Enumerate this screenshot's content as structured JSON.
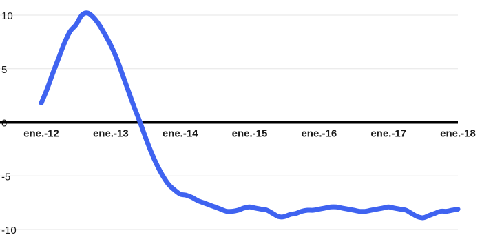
{
  "chart_data": {
    "type": "line",
    "title": "",
    "xlabel": "",
    "ylabel": "",
    "ylim": [
      -10,
      10
    ],
    "xlim": [
      "2012-01",
      "2018-01"
    ],
    "y_ticks": [
      10,
      5,
      0,
      -5,
      -10
    ],
    "y_tick_labels": [
      "10",
      "5",
      "0",
      "-5",
      "-10"
    ],
    "x_ticks": [
      "2012-01",
      "2013-01",
      "2014-01",
      "2015-01",
      "2016-01",
      "2017-01",
      "2018-01"
    ],
    "x_tick_labels": [
      "ene.-12",
      "ene.-13",
      "ene.-14",
      "ene.-15",
      "ene.-16",
      "ene.-17",
      "ene.-18"
    ],
    "grid": true,
    "zero_line": true,
    "colors": {
      "series": "#3f63f0",
      "zero_line": "#000000",
      "grid": "#e6e6e6"
    },
    "series": [
      {
        "x": [
          "2012-01",
          "2012-02",
          "2012-03",
          "2012-04",
          "2012-05",
          "2012-06",
          "2012-07",
          "2012-08",
          "2012-09",
          "2012-10",
          "2012-11",
          "2012-12",
          "2013-01",
          "2013-02",
          "2013-03",
          "2013-04",
          "2013-05",
          "2013-06",
          "2013-07",
          "2013-08",
          "2013-09",
          "2013-10",
          "2013-11",
          "2013-12",
          "2014-01",
          "2014-02",
          "2014-03",
          "2014-04",
          "2014-05",
          "2014-06",
          "2014-07",
          "2014-08",
          "2014-09",
          "2014-10",
          "2014-11",
          "2014-12",
          "2015-01",
          "2015-02",
          "2015-03",
          "2015-04",
          "2015-05",
          "2015-06",
          "2015-07",
          "2015-08",
          "2015-09",
          "2015-10",
          "2015-11",
          "2015-12",
          "2016-01",
          "2016-02",
          "2016-03",
          "2016-04",
          "2016-05",
          "2016-06",
          "2016-07",
          "2016-08",
          "2016-09",
          "2016-10",
          "2016-11",
          "2016-12",
          "2017-01",
          "2017-02",
          "2017-03",
          "2017-04",
          "2017-05",
          "2017-06",
          "2017-07",
          "2017-08",
          "2017-09",
          "2017-10",
          "2017-11",
          "2017-12",
          "2018-01"
        ],
        "values": [
          1.8,
          3.1,
          4.6,
          6.0,
          7.4,
          8.5,
          9.1,
          10.0,
          10.2,
          9.8,
          9.1,
          8.2,
          7.2,
          6.0,
          4.5,
          3.0,
          1.5,
          0.1,
          -1.4,
          -2.8,
          -4.0,
          -5.0,
          -5.8,
          -6.3,
          -6.7,
          -6.8,
          -7.0,
          -7.3,
          -7.5,
          -7.7,
          -7.9,
          -8.1,
          -8.3,
          -8.3,
          -8.2,
          -8.0,
          -7.9,
          -8.0,
          -8.1,
          -8.2,
          -8.5,
          -8.8,
          -8.8,
          -8.6,
          -8.5,
          -8.3,
          -8.2,
          -8.2,
          -8.1,
          -8.0,
          -7.9,
          -7.9,
          -8.0,
          -8.1,
          -8.2,
          -8.3,
          -8.3,
          -8.2,
          -8.1,
          -8.0,
          -7.9,
          -8.0,
          -8.1,
          -8.2,
          -8.5,
          -8.8,
          -8.9,
          -8.7,
          -8.5,
          -8.3,
          -8.3,
          -8.2,
          -8.1
        ]
      }
    ]
  }
}
